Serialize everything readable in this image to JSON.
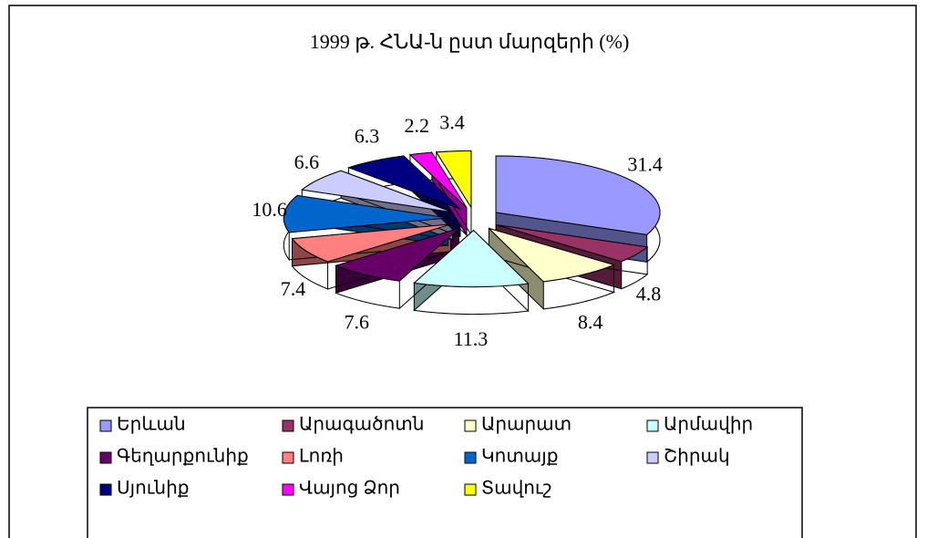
{
  "chart_data": {
    "type": "pie",
    "title": "1999 թ. ՀՆԱ-ն ըստ մարզերի (%)",
    "categories": [
      "Երևան",
      "Արագածոտն",
      "Արարատ",
      "Արմավիր",
      "Գեղարքունիք",
      "Լոռի",
      "Կոտայք",
      "Շիրակ",
      "Սյունիք",
      "Վայոց Ձոր",
      "Տավուշ"
    ],
    "values": [
      31.4,
      4.8,
      8.4,
      11.3,
      7.6,
      7.4,
      10.6,
      6.6,
      6.3,
      2.2,
      3.4
    ],
    "colors": [
      "#9999FF",
      "#993366",
      "#FFFFCC",
      "#CCFFFF",
      "#660066",
      "#FF8080",
      "#0066CC",
      "#CCCCFF",
      "#000080",
      "#FF00FF",
      "#FFFF00"
    ],
    "legend": "bottom"
  }
}
